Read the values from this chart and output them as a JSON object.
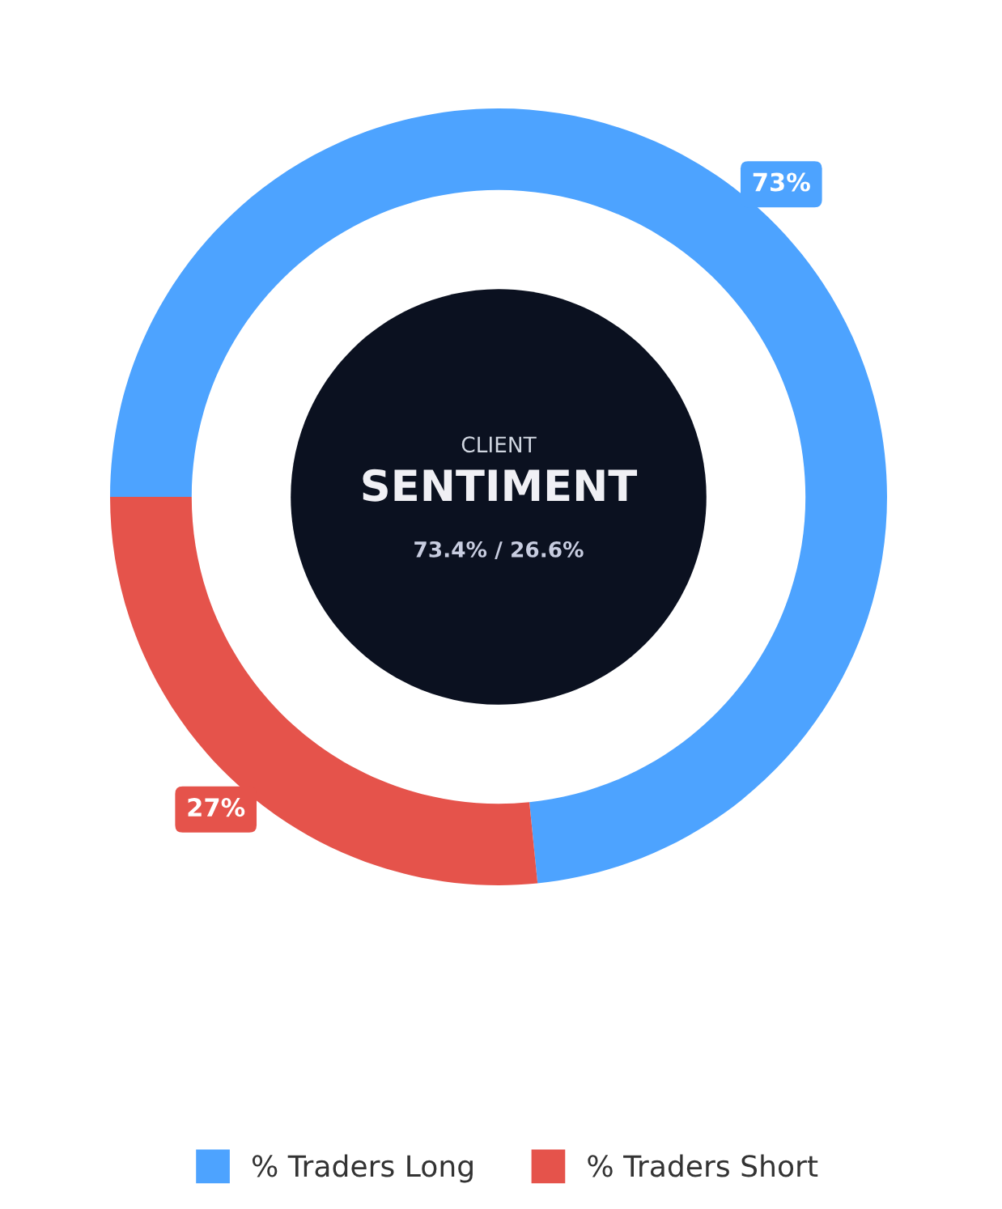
{
  "chart_data": {
    "type": "donut",
    "categories": [
      "% Traders Long",
      "% Traders Short"
    ],
    "values": [
      73.4,
      26.6
    ],
    "colors": [
      "#4da3ff",
      "#e5534b"
    ],
    "value_labels": [
      "73%",
      "27%"
    ],
    "annotations": [
      "CLIENT",
      "SENTIMENT",
      "73.4% / 26.6%"
    ],
    "legend": "bottom"
  }
}
